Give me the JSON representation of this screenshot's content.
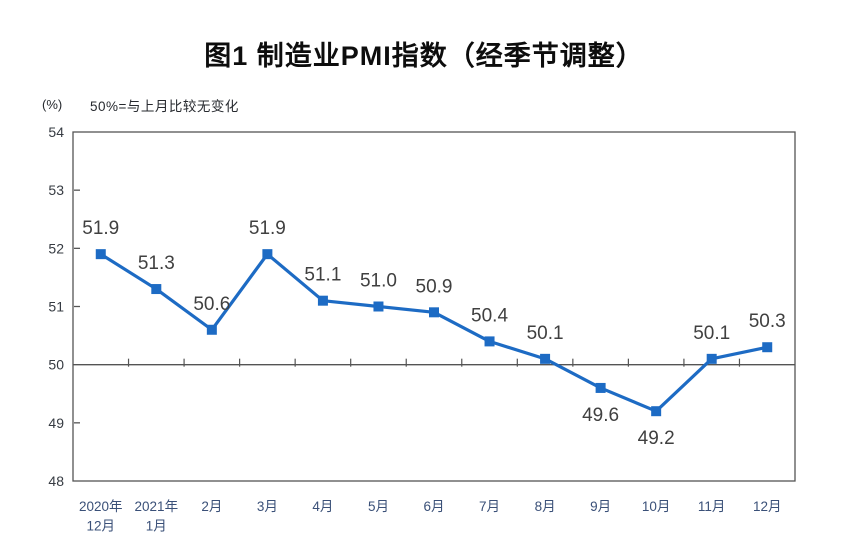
{
  "figure": {
    "title": "图1 制造业PMI指数（经季节调整）",
    "unit_label": "(%)",
    "note": "50%=与上月比较无变化"
  },
  "chart_data": {
    "type": "line",
    "title": "图1 制造业PMI指数（经季节调整）",
    "ylabel": "(%)",
    "xlabel": "",
    "annotation": "50%=与上月比较无变化",
    "legend_position": "none",
    "grid": "off",
    "reference_line_y": 50,
    "ylim": [
      48,
      54
    ],
    "yticks": [
      "48",
      "49",
      "50",
      "51",
      "52",
      "53",
      "54"
    ],
    "categories": [
      "2020年\n12月",
      "2021年\n1月",
      "2月",
      "3月",
      "4月",
      "5月",
      "6月",
      "7月",
      "8月",
      "9月",
      "10月",
      "11月",
      "12月"
    ],
    "series": [
      {
        "values": [
          51.9,
          51.3,
          50.6,
          51.9,
          51.1,
          51.0,
          50.9,
          50.4,
          50.1,
          49.6,
          49.2,
          50.1,
          50.3
        ],
        "value_labels": [
          "51.9",
          "51.3",
          "50.6",
          "51.9",
          "51.1",
          "51.0",
          "50.9",
          "50.4",
          "50.1",
          "49.6",
          "49.2",
          "50.1",
          "50.3"
        ],
        "label_positions": [
          "above",
          "above",
          "above",
          "above",
          "above",
          "above",
          "above",
          "above",
          "above",
          "below",
          "below",
          "above",
          "above"
        ]
      }
    ],
    "colors": {
      "line": "#1d6bc4",
      "marker": "#1d6bc4",
      "axis": "#545454",
      "data_label": "#404040",
      "y_tick_label": "#363b42",
      "x_tick_label": "#3a5078",
      "title": "#0d0d0d"
    }
  }
}
